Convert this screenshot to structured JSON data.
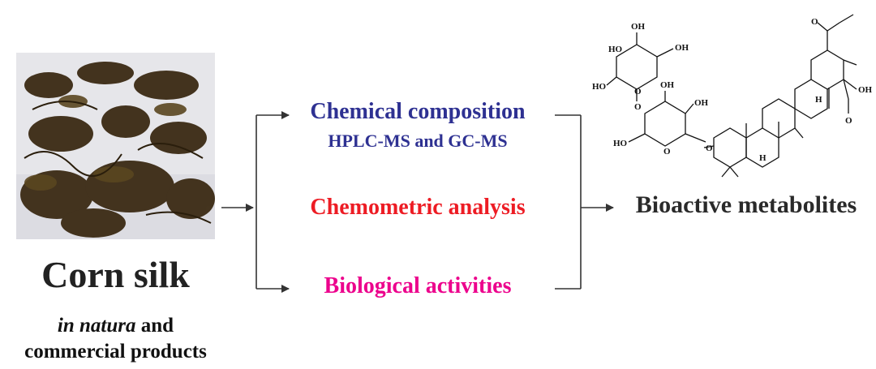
{
  "left": {
    "title": "Corn silk",
    "subtitle_italic": "in natura",
    "subtitle_rest": " and",
    "subtitle_line2": "commercial products"
  },
  "middle": {
    "chemical_title": "Chemical composition",
    "chemical_sub": "HPLC-MS and GC-MS",
    "chemometric": "Chemometric analysis",
    "biological": "Biological activities"
  },
  "right": {
    "result": "Bioactive metabolites"
  },
  "colors": {
    "chemical": "#2e3192",
    "chemometric": "#ed1c24",
    "biological": "#ec008c",
    "lines": "#333333"
  },
  "molecule_labels": {
    "ho1": "HO",
    "oh1": "OH",
    "oh2": "OH",
    "ho2": "HO",
    "o1": "O",
    "o2": "O",
    "oh3": "OH",
    "oh4": "OH",
    "ho3": "HO",
    "o3": "O",
    "o4": "O",
    "h1": "H",
    "h2": "H",
    "oh5": "OH",
    "o5": "O",
    "o6": "O"
  }
}
